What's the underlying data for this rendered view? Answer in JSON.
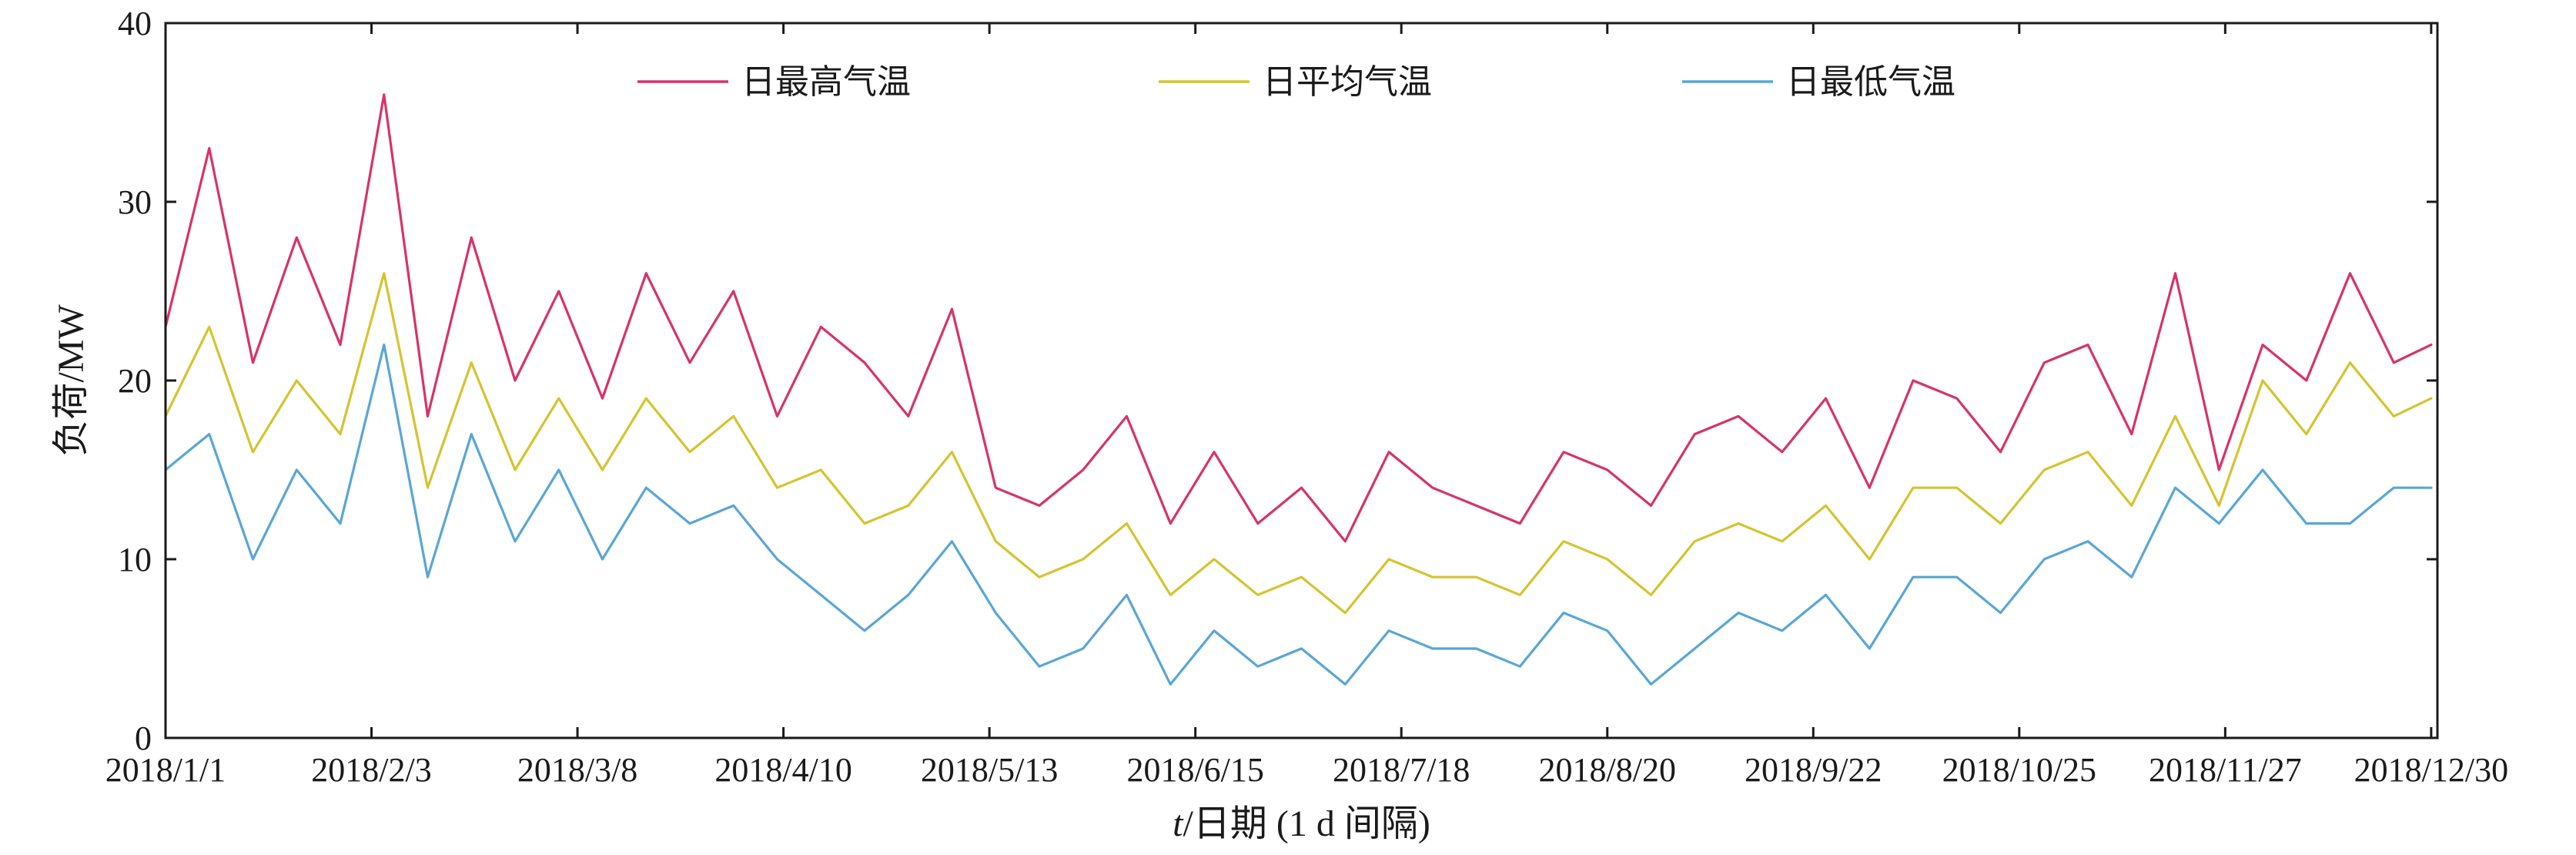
{
  "chart_data": {
    "type": "line",
    "title": "",
    "xlabel": "t/日期 (1 d 间隔)",
    "xlabel_italic_prefix": "t",
    "xlabel_rest": "/日期 (1 d 间隔)",
    "ylabel": "负荷/MW",
    "ylim": [
      0,
      40
    ],
    "yticks": [
      0,
      10,
      20,
      30,
      40
    ],
    "xlim": [
      "2018-01-01",
      "2018-12-31"
    ],
    "x_tick_labels": [
      "2018/1/1",
      "2018/2/3",
      "2018/3/8",
      "2018/4/10",
      "2018/5/13",
      "2018/6/15",
      "2018/7/18",
      "2018/8/20",
      "2018/9/22",
      "2018/10/25",
      "2018/11/27",
      "2018/12/30"
    ],
    "x_tick_dates": [
      "2018-01-01",
      "2018-02-03",
      "2018-03-08",
      "2018-04-10",
      "2018-05-13",
      "2018-06-15",
      "2018-07-18",
      "2018-08-20",
      "2018-09-22",
      "2018-10-25",
      "2018-11-27",
      "2018-12-30"
    ],
    "grid": false,
    "legend_position": "top",
    "series_sampling": "weekly (every 7 days starting 2018/1/1), approximate values read from the curves",
    "series": [
      {
        "name": "日最高气温",
        "color": "#d6336c",
        "x": [
          "2018-01-01",
          "2018-01-08",
          "2018-01-15",
          "2018-01-22",
          "2018-01-29",
          "2018-02-05",
          "2018-02-12",
          "2018-02-19",
          "2018-02-26",
          "2018-03-05",
          "2018-03-12",
          "2018-03-19",
          "2018-03-26",
          "2018-04-02",
          "2018-04-09",
          "2018-04-16",
          "2018-04-23",
          "2018-04-30",
          "2018-05-07",
          "2018-05-14",
          "2018-05-21",
          "2018-05-28",
          "2018-06-04",
          "2018-06-11",
          "2018-06-18",
          "2018-06-25",
          "2018-07-02",
          "2018-07-09",
          "2018-07-16",
          "2018-07-23",
          "2018-07-30",
          "2018-08-06",
          "2018-08-13",
          "2018-08-20",
          "2018-08-27",
          "2018-09-03",
          "2018-09-10",
          "2018-09-17",
          "2018-09-24",
          "2018-10-01",
          "2018-10-08",
          "2018-10-15",
          "2018-10-22",
          "2018-10-29",
          "2018-11-05",
          "2018-11-12",
          "2018-11-19",
          "2018-11-26",
          "2018-12-03",
          "2018-12-10",
          "2018-12-17",
          "2018-12-24",
          "2018-12-30"
        ],
        "values": [
          23,
          33,
          21,
          28,
          22,
          36,
          18,
          28,
          20,
          25,
          19,
          26,
          21,
          25,
          18,
          23,
          21,
          18,
          24,
          14,
          13,
          15,
          18,
          12,
          16,
          12,
          14,
          11,
          16,
          14,
          13,
          12,
          16,
          15,
          13,
          17,
          18,
          16,
          19,
          14,
          20,
          19,
          16,
          21,
          22,
          17,
          26,
          15,
          22,
          20,
          26,
          21,
          22
        ]
      },
      {
        "name": "日平均气温",
        "color": "#d4c431",
        "x": [
          "2018-01-01",
          "2018-01-08",
          "2018-01-15",
          "2018-01-22",
          "2018-01-29",
          "2018-02-05",
          "2018-02-12",
          "2018-02-19",
          "2018-02-26",
          "2018-03-05",
          "2018-03-12",
          "2018-03-19",
          "2018-03-26",
          "2018-04-02",
          "2018-04-09",
          "2018-04-16",
          "2018-04-23",
          "2018-04-30",
          "2018-05-07",
          "2018-05-14",
          "2018-05-21",
          "2018-05-28",
          "2018-06-04",
          "2018-06-11",
          "2018-06-18",
          "2018-06-25",
          "2018-07-02",
          "2018-07-09",
          "2018-07-16",
          "2018-07-23",
          "2018-07-30",
          "2018-08-06",
          "2018-08-13",
          "2018-08-20",
          "2018-08-27",
          "2018-09-03",
          "2018-09-10",
          "2018-09-17",
          "2018-09-24",
          "2018-10-01",
          "2018-10-08",
          "2018-10-15",
          "2018-10-22",
          "2018-10-29",
          "2018-11-05",
          "2018-11-12",
          "2018-11-19",
          "2018-11-26",
          "2018-12-03",
          "2018-12-10",
          "2018-12-17",
          "2018-12-24",
          "2018-12-30"
        ],
        "values": [
          18,
          23,
          16,
          20,
          17,
          26,
          14,
          21,
          15,
          19,
          15,
          19,
          16,
          18,
          14,
          15,
          12,
          13,
          16,
          11,
          9,
          10,
          12,
          8,
          10,
          8,
          9,
          7,
          10,
          9,
          9,
          8,
          11,
          10,
          8,
          11,
          12,
          11,
          13,
          10,
          14,
          14,
          12,
          15,
          16,
          13,
          18,
          13,
          20,
          17,
          21,
          18,
          19
        ]
      },
      {
        "name": "日最低气温",
        "color": "#5aa6d6",
        "x": [
          "2018-01-01",
          "2018-01-08",
          "2018-01-15",
          "2018-01-22",
          "2018-01-29",
          "2018-02-05",
          "2018-02-12",
          "2018-02-19",
          "2018-02-26",
          "2018-03-05",
          "2018-03-12",
          "2018-03-19",
          "2018-03-26",
          "2018-04-02",
          "2018-04-09",
          "2018-04-16",
          "2018-04-23",
          "2018-04-30",
          "2018-05-07",
          "2018-05-14",
          "2018-05-21",
          "2018-05-28",
          "2018-06-04",
          "2018-06-11",
          "2018-06-18",
          "2018-06-25",
          "2018-07-02",
          "2018-07-09",
          "2018-07-16",
          "2018-07-23",
          "2018-07-30",
          "2018-08-06",
          "2018-08-13",
          "2018-08-20",
          "2018-08-27",
          "2018-09-03",
          "2018-09-10",
          "2018-09-17",
          "2018-09-24",
          "2018-10-01",
          "2018-10-08",
          "2018-10-15",
          "2018-10-22",
          "2018-10-29",
          "2018-11-05",
          "2018-11-12",
          "2018-11-19",
          "2018-11-26",
          "2018-12-03",
          "2018-12-10",
          "2018-12-17",
          "2018-12-24",
          "2018-12-30"
        ],
        "values": [
          15,
          17,
          10,
          15,
          12,
          22,
          9,
          17,
          11,
          15,
          10,
          14,
          12,
          13,
          10,
          8,
          6,
          8,
          11,
          7,
          4,
          5,
          8,
          3,
          6,
          4,
          5,
          3,
          6,
          5,
          5,
          4,
          7,
          6,
          3,
          5,
          7,
          6,
          8,
          5,
          9,
          9,
          7,
          10,
          11,
          9,
          14,
          12,
          15,
          12,
          12,
          14,
          14
        ]
      }
    ]
  }
}
